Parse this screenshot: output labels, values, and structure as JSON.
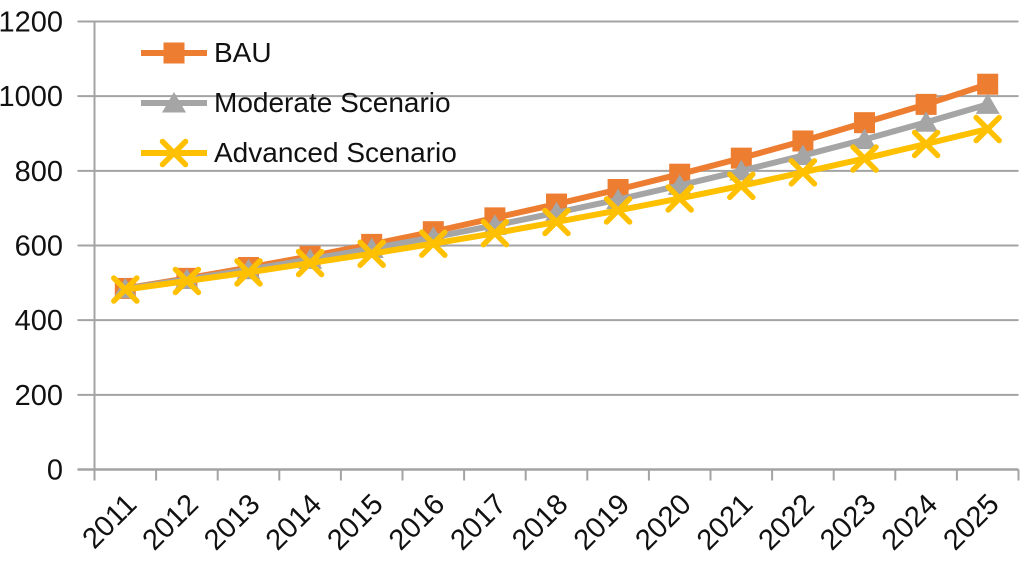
{
  "chart_data": {
    "type": "line",
    "title": "",
    "xlabel": "",
    "ylabel": "",
    "categories": [
      "2011",
      "2012",
      "2013",
      "2014",
      "2015",
      "2016",
      "2017",
      "2018",
      "2019",
      "2020",
      "2021",
      "2022",
      "2023",
      "2024",
      "2025"
    ],
    "series": [
      {
        "name": "BAU",
        "color": "#ED7D31",
        "marker": "square",
        "values": [
          485,
          512,
          541,
          571,
          603,
          637,
          674,
          711,
          750,
          791,
          834,
          880,
          929,
          978,
          1032
        ]
      },
      {
        "name": "Moderate Scenario",
        "color": "#A5A5A5",
        "marker": "triangle",
        "values": [
          484,
          509,
          535,
          563,
          592,
          622,
          654,
          688,
          723,
          761,
          800,
          841,
          884,
          930,
          978
        ]
      },
      {
        "name": "Advanced Scenario",
        "color": "#FFC000",
        "marker": "x",
        "values": [
          482,
          505,
          528,
          553,
          578,
          605,
          633,
          663,
          694,
          726,
          760,
          796,
          833,
          872,
          912
        ]
      }
    ],
    "ylim": [
      0,
      1200
    ],
    "y_ticks": [
      0,
      200,
      400,
      600,
      800,
      1000,
      1200
    ],
    "grid": "horizontal",
    "legend_position": "top-left-inside",
    "axis_color": "#A3A3A3",
    "text_color": "#111111",
    "background_color": "#FFFFFF"
  }
}
